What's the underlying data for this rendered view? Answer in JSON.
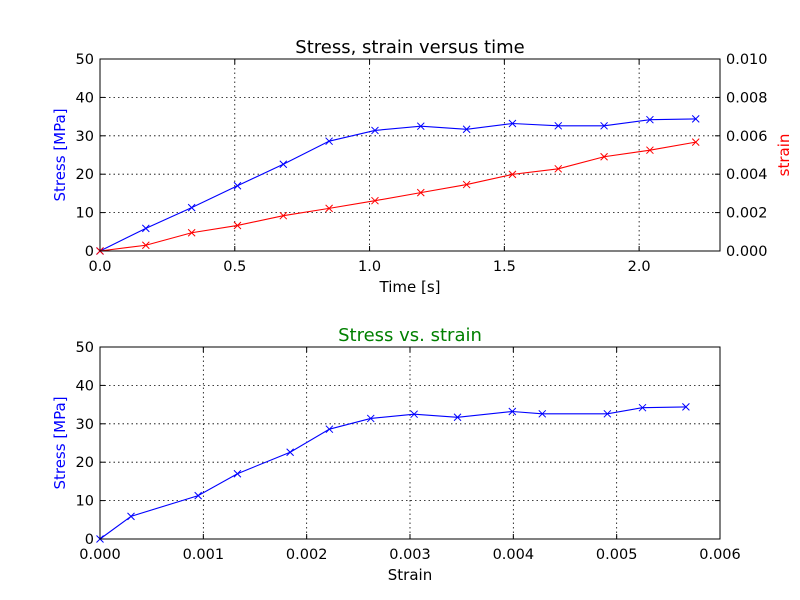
{
  "chart_data": [
    {
      "type": "line",
      "title": "Stress, strain versus time",
      "xlabel": "Time [s]",
      "ylabel": "Stress [MPa]",
      "y2label": "strain",
      "xlim": [
        0,
        2.3
      ],
      "ylim": [
        0,
        50
      ],
      "y2lim": [
        0,
        0.01
      ],
      "xticks": [
        "0.0",
        "0.5",
        "1.0",
        "1.5",
        "2.0"
      ],
      "yticks": [
        "0",
        "10",
        "20",
        "30",
        "40",
        "50"
      ],
      "y2ticks": [
        "0.000",
        "0.002",
        "0.004",
        "0.006",
        "0.008",
        "0.010"
      ],
      "grid": true,
      "series": [
        {
          "axis": "left",
          "color": "#0000ff",
          "marker": "x",
          "x": [
            0.0,
            0.17,
            0.34,
            0.51,
            0.68,
            0.85,
            1.02,
            1.19,
            1.36,
            1.53,
            1.7,
            1.87,
            2.04,
            2.21
          ],
          "values": [
            0.0,
            5.9,
            11.3,
            17.0,
            22.6,
            28.6,
            31.4,
            32.5,
            31.7,
            33.2,
            32.6,
            32.6,
            34.2,
            34.4
          ]
        },
        {
          "axis": "right",
          "color": "#ff0000",
          "marker": "x",
          "x": [
            0.0,
            0.17,
            0.34,
            0.51,
            0.68,
            0.85,
            1.02,
            1.19,
            1.36,
            1.53,
            1.7,
            1.87,
            2.04,
            2.21
          ],
          "values": [
            0.0,
            0.0003,
            0.00095,
            0.00133,
            0.00184,
            0.00222,
            0.00262,
            0.00304,
            0.00346,
            0.00399,
            0.00428,
            0.00491,
            0.00525,
            0.00567
          ]
        }
      ]
    },
    {
      "type": "line",
      "title": "Stress vs. strain",
      "title_color": "#008000",
      "xlabel": "Strain",
      "ylabel": "Stress [MPa]",
      "xlim": [
        0,
        0.006
      ],
      "ylim": [
        0,
        50
      ],
      "xticks": [
        "0.000",
        "0.001",
        "0.002",
        "0.003",
        "0.004",
        "0.005",
        "0.006"
      ],
      "yticks": [
        "0",
        "10",
        "20",
        "30",
        "40",
        "50"
      ],
      "grid": true,
      "series": [
        {
          "color": "#0000ff",
          "marker": "x",
          "x": [
            0.0,
            0.0003,
            0.00095,
            0.00133,
            0.00184,
            0.00222,
            0.00262,
            0.00304,
            0.00346,
            0.00399,
            0.00428,
            0.00491,
            0.00525,
            0.00567
          ],
          "values": [
            0.0,
            5.9,
            11.3,
            17.0,
            22.6,
            28.6,
            31.4,
            32.5,
            31.7,
            33.2,
            32.6,
            32.6,
            34.2,
            34.4
          ]
        }
      ]
    }
  ]
}
